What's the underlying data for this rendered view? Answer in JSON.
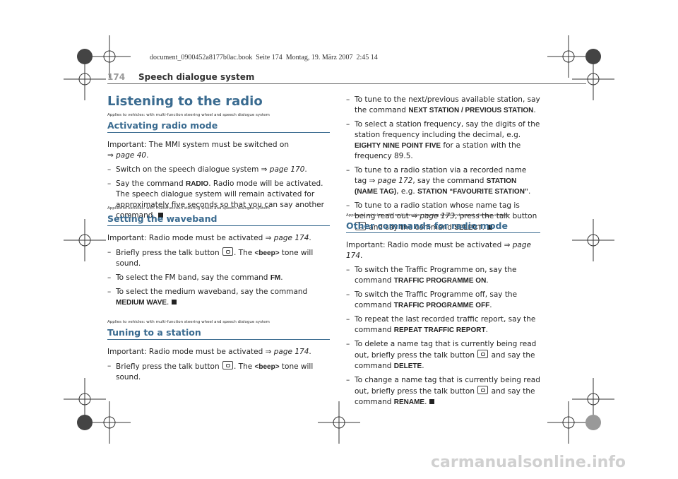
{
  "header_note": "document_0900452a8177b0ac.book  Seite 174  Montag, 19. März 2007  2:45 14",
  "header": {
    "page_number": "174",
    "title": "Speech dialogue system"
  },
  "title": "Listening to the radio",
  "sections": [
    {
      "applies": "Applies to vehicles: with multi-function steering wheel and speech dialogue system",
      "heading": "Activating radio mode",
      "paragraphs": [
        [
          "Important: The MMI system must be switched on",
          "⇒ ",
          "page 40",
          "."
        ],
        [
          "–",
          "Switch on the speech dialogue system ⇒ ",
          "page 170",
          "."
        ],
        [
          "–",
          "Say the command ",
          "RADIO",
          ". Radio mode will be activated. The speech dialogue system will remain activated for approximately five seconds so that you can say another command."
        ]
      ]
    },
    {
      "applies": "Applies to vehicles: with multi-function steering wheel and speech dialogue system",
      "heading": "Setting the waveband",
      "paragraphs": [
        [
          "Important: Radio mode must be activated ⇒ ",
          "page 174",
          "."
        ],
        [
          "–",
          "Briefly press the talk button ",
          ". The ",
          "<beep>",
          " tone will sound."
        ],
        [
          "–",
          "To select the FM band, say the command ",
          "FM",
          "."
        ],
        [
          "–",
          "To select the medium waveband, say the command ",
          "MEDIUM WAVE",
          "."
        ]
      ]
    },
    {
      "applies": "Applies to vehicles: with multi-function steering wheel and speech dialogue system",
      "heading": "Tuning to a station",
      "paragraphs": [
        [
          "Important: Radio mode must be activated ⇒ ",
          "page 174",
          "."
        ],
        [
          "–",
          "Briefly press the talk button ",
          ". The ",
          "<beep>",
          " tone will sound."
        ],
        [
          "–",
          "To tune to the next/previous available station, say the command ",
          "NEXT STATION / PREVIOUS STATION",
          "."
        ],
        [
          "–",
          "To select a station frequency, say the digits of the station frequency including the decimal, e.g. ",
          "EIGHTY NINE POINT FIVE",
          " for a station with the frequency 89.5."
        ],
        [
          "–",
          "To tune to a radio station via a recorded name tag ⇒ ",
          "page 172",
          ", say the command ",
          "STATION (NAME TAG)",
          ", e.g. ",
          "STATION “FAVOURITE STATION”",
          "."
        ],
        [
          "–",
          "To tune to a radio station whose name tag is being read out ⇒ ",
          "page 173",
          ", press the talk button ",
          " and say the command ",
          "SELECT",
          "."
        ]
      ]
    },
    {
      "applies": "Applies to vehicles: with multi-function steering wheel and speech dialogue system",
      "heading": "Other commands for radio mode",
      "paragraphs": [
        [
          "Important: Radio mode must be activated ⇒ ",
          "page 174",
          "."
        ],
        [
          "–",
          "To switch the Traffic Programme on, say the command ",
          "TRAFFIC PROGRAMME ON",
          "."
        ],
        [
          "–",
          "To switch the Traffic Programme off, say the command ",
          "TRAFFIC PROGRAMME OFF",
          "."
        ],
        [
          "–",
          "To repeat the last recorded traffic report, say the command ",
          "REPEAT TRAFFIC REPORT",
          "."
        ],
        [
          "–",
          "To delete a name tag that is currently being read out, briefly press the talk button ",
          " and say the command ",
          "DELETE",
          "."
        ],
        [
          "–",
          "To change a name tag that is currently being read out, briefly press the talk button ",
          " and say the command ",
          "RENAME",
          "."
        ]
      ]
    }
  ],
  "watermark": "carmanualsonline.info"
}
